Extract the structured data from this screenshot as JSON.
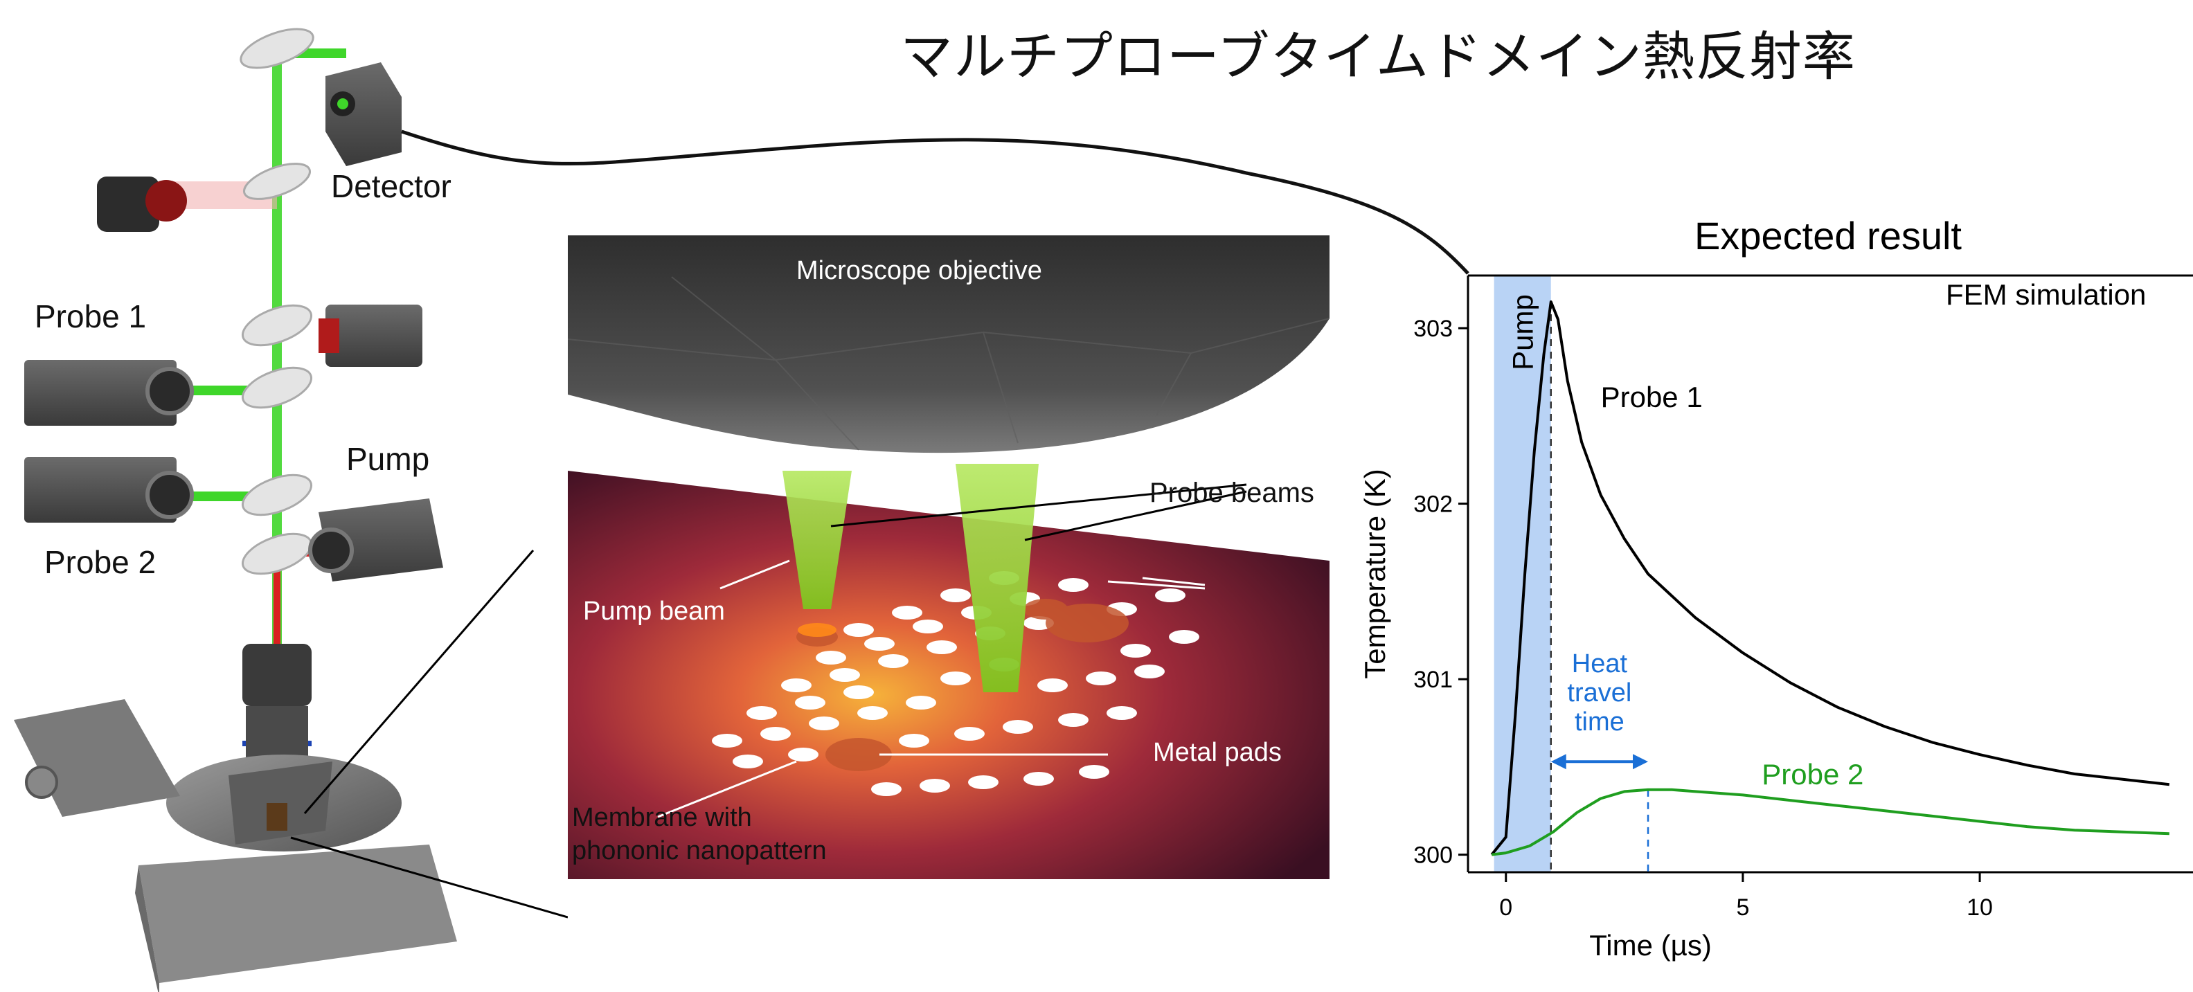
{
  "title": "マルチプローブタイムドメイン熱反射率",
  "setup": {
    "detector": "Detector",
    "probe1": "Probe 1",
    "probe2": "Probe 2",
    "pump": "Pump"
  },
  "closeup": {
    "objective": "Microscope objective",
    "probe_beams": "Probe beams",
    "pump_beam": "Pump beam",
    "metal_pads": "Metal pads",
    "membrane_line1": "Membrane with",
    "membrane_line2": "phononic nanopattern"
  },
  "colors": {
    "laser_green": "#3fd62a",
    "laser_red": "#d92020",
    "pump_band": "#b9d3f5",
    "probe1_curve": "#000000",
    "probe2_curve": "#1f9e1f",
    "annotation_blue": "#1a6fd6"
  },
  "chart_data": {
    "type": "line",
    "title": "Expected result",
    "annotation": "FEM simulation",
    "xlabel": "Time (µs)",
    "ylabel": "Temperature (K)",
    "xlim": [
      -0.8,
      14.5
    ],
    "ylim": [
      299.9,
      303.3
    ],
    "xticks": [
      0,
      5,
      10
    ],
    "yticks": [
      300,
      301,
      302,
      303
    ],
    "pump_band": {
      "label": "Pump",
      "x_start": -0.25,
      "x_end": 0.95
    },
    "heat_travel": {
      "line1": "Heat",
      "line2": "travel",
      "line3": "time",
      "x_start": 0.95,
      "x_end": 3.0
    },
    "series": [
      {
        "name": "Probe 1",
        "x": [
          -0.3,
          0.0,
          0.2,
          0.4,
          0.6,
          0.8,
          0.95,
          1.1,
          1.3,
          1.6,
          2.0,
          2.5,
          3.0,
          4.0,
          5.0,
          6.0,
          7.0,
          8.0,
          9.0,
          10.0,
          11.0,
          12.0,
          13.0,
          14.0
        ],
        "y": [
          300.0,
          300.1,
          300.8,
          301.6,
          302.3,
          302.85,
          303.15,
          303.05,
          302.7,
          302.35,
          302.05,
          301.8,
          301.6,
          301.35,
          301.15,
          300.98,
          300.84,
          300.73,
          300.64,
          300.57,
          300.51,
          300.46,
          300.43,
          300.4
        ]
      },
      {
        "name": "Probe 2",
        "x": [
          -0.3,
          0.0,
          0.5,
          1.0,
          1.5,
          2.0,
          2.5,
          3.0,
          3.5,
          4.0,
          5.0,
          6.0,
          7.0,
          8.0,
          9.0,
          10.0,
          11.0,
          12.0,
          13.0,
          14.0
        ],
        "y": [
          300.0,
          300.01,
          300.05,
          300.13,
          300.24,
          300.32,
          300.36,
          300.37,
          300.37,
          300.36,
          300.34,
          300.31,
          300.28,
          300.25,
          300.22,
          300.19,
          300.16,
          300.14,
          300.13,
          300.12
        ]
      }
    ],
    "markers": [
      {
        "series": "Probe 1",
        "x": 0.95,
        "style": "dashed"
      },
      {
        "series": "Probe 2",
        "x": 3.0,
        "style": "dashed"
      }
    ]
  }
}
